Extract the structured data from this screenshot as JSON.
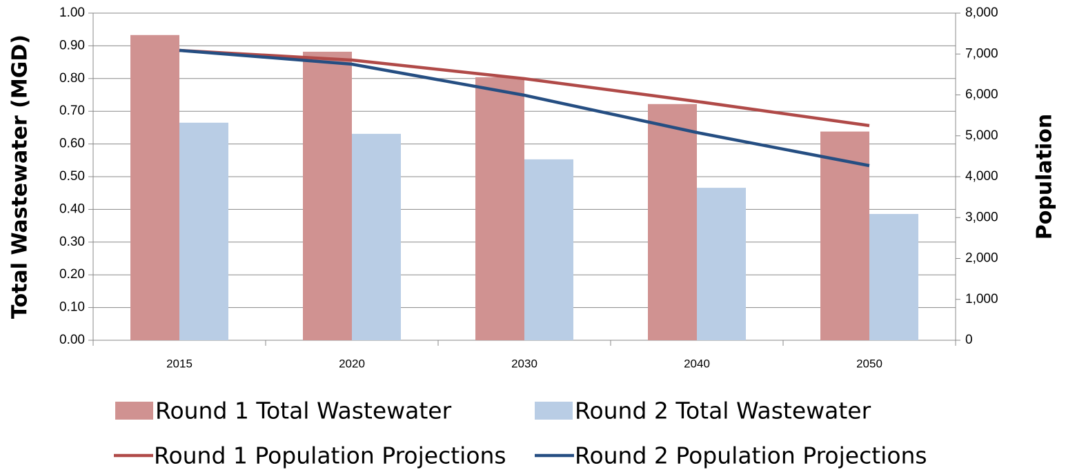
{
  "chart_data": {
    "type": "combo",
    "categories": [
      "2015",
      "2020",
      "2030",
      "2040",
      "2050"
    ],
    "y_label": "Total Wastewater (MGD)",
    "y2_label": "Population",
    "ylim": [
      0,
      1
    ],
    "yticks": [
      {
        "value": 0,
        "label": "0.00"
      },
      {
        "value": 0.1,
        "label": "0.10"
      },
      {
        "value": 0.2,
        "label": "0.20"
      },
      {
        "value": 0.3,
        "label": "0.30"
      },
      {
        "value": 0.4,
        "label": "0.40"
      },
      {
        "value": 0.5,
        "label": "0.50"
      },
      {
        "value": 0.6,
        "label": "0.60"
      },
      {
        "value": 0.7,
        "label": "0.70"
      },
      {
        "value": 0.8,
        "label": "0.80"
      },
      {
        "value": 0.9,
        "label": "0.90"
      },
      {
        "value": 1,
        "label": "1.00"
      }
    ],
    "y2lim": [
      0,
      8000
    ],
    "y2ticks": [
      0,
      {
        "value": 1000,
        "label": "1,000"
      },
      {
        "value": 2000,
        "label": "2,000"
      },
      {
        "value": 3000,
        "label": "3,000"
      },
      {
        "value": 4000,
        "label": "4,000"
      },
      {
        "value": 5000,
        "label": "5,000"
      },
      {
        "value": 6000,
        "label": "6,000"
      },
      {
        "value": 7000,
        "label": "7,000"
      },
      {
        "value": 8000,
        "label": "8,000"
      }
    ],
    "grid": true,
    "legend": "bottom",
    "series": [
      {
        "name": "Round 1 Total Wastewater",
        "type": "bar",
        "axis": "y",
        "color": "#d09291",
        "values": [
          0.933,
          0.882,
          0.804,
          0.722,
          0.638
        ]
      },
      {
        "name": "Round 2 Total Wastewater",
        "type": "bar",
        "axis": "y",
        "color": "#b9cde5",
        "values": [
          0.665,
          0.631,
          0.553,
          0.466,
          0.386
        ]
      },
      {
        "name": "Round 1 Population Projections",
        "type": "line",
        "axis": "y2",
        "color": "#b04a48",
        "values": [
          7089,
          6852,
          6397,
          5840,
          5249
        ]
      },
      {
        "name": "Round 2 Population Projections",
        "type": "line",
        "axis": "y2",
        "color": "#254e82",
        "values": [
          7089,
          6751,
          5992,
          5080,
          4270
        ]
      }
    ]
  }
}
